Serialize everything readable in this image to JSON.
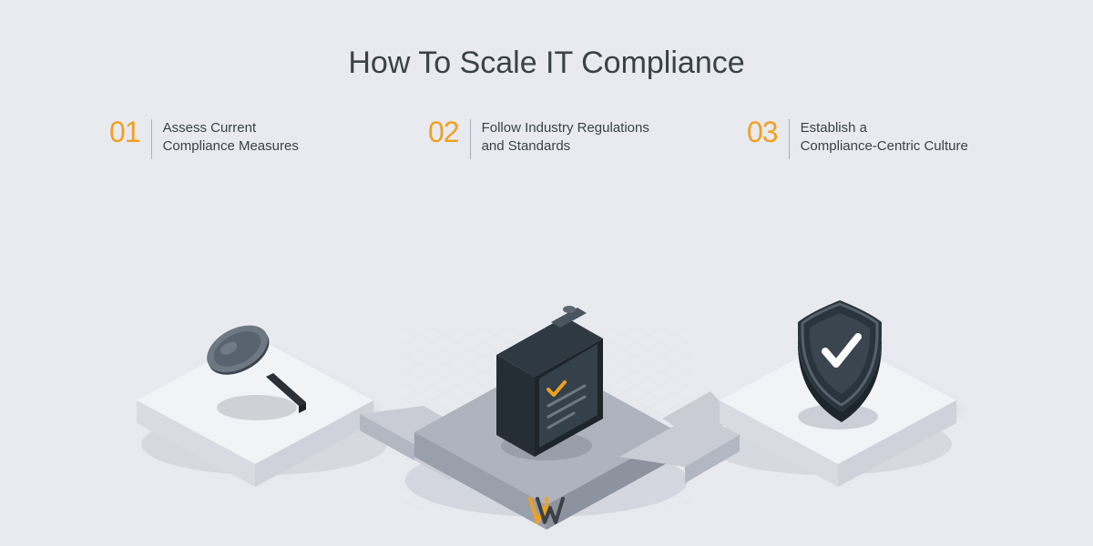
{
  "title": "How To Scale IT Compliance",
  "background_color": "#e8eaef",
  "title_color": "#3a4248",
  "title_fontsize": 34,
  "accent_color": "#f0a020",
  "step_label_fontsize": 15,
  "steps": [
    {
      "num": "01",
      "label": "Assess Current\nCompliance Measures",
      "icon": "magnifier"
    },
    {
      "num": "02",
      "label": "Follow Industry Regulations\nand Standards",
      "icon": "clipboard"
    },
    {
      "num": "03",
      "label": "Establish a\nCompliance-Centric Culture",
      "icon": "shield"
    }
  ],
  "platforms": {
    "light_top": "#f2f3f6",
    "light_side_l": "#d9dbe2",
    "light_side_r": "#cfd2db",
    "dark_top": "#aeb3bd",
    "dark_side_l": "#9aa0ab",
    "dark_side_r": "#8c929e",
    "shadow": "#d7d9e0"
  },
  "arrow_color_top": "#c9ccd5",
  "arrow_color_side": "#b3b7c2",
  "icons": {
    "magnifier": {
      "glass_outer": "#3a4550",
      "glass_inner": "#58636f",
      "handle": "#2a3138",
      "rim": "#6d7883"
    },
    "clipboard": {
      "board_top": "#2f3942",
      "board_side_l": "#252d35",
      "board_side_r": "#1d242a",
      "paper": "#34404a",
      "clip": "#4a5560",
      "check": "#f0a020",
      "line": "#6d7883"
    },
    "shield": {
      "outer": "#2a343d",
      "inner": "#3a4550",
      "rim": "#56616c",
      "check": "#ffffff"
    }
  },
  "logo": {
    "orange": "#f0a020",
    "dark": "#3a4248"
  },
  "grid_color": "#dfe1e8"
}
